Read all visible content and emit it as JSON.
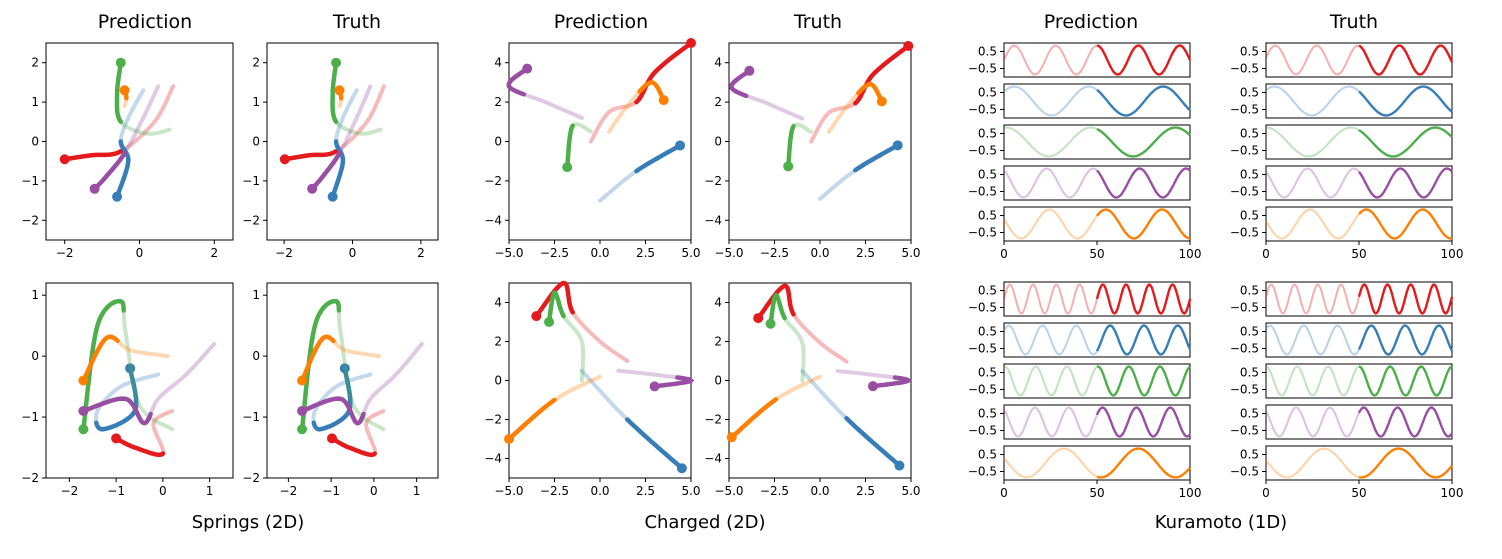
{
  "figure": {
    "groups": [
      {
        "label": "Springs (2D)"
      },
      {
        "label": "Charged (2D)"
      },
      {
        "label": "Kuramoto (1D)"
      }
    ],
    "column_titles": [
      "Prediction",
      "Truth",
      "Prediction",
      "Truth",
      "Prediction",
      "Truth"
    ]
  },
  "colors": {
    "red": "#e41a1c",
    "blue": "#377eb8",
    "green": "#4daf4a",
    "purple": "#984ea3",
    "orange": "#ff7f00"
  },
  "chart_data": [
    {
      "type": "line",
      "group": "Springs (2D)",
      "panels": [
        "Prediction",
        "Truth"
      ],
      "rows": 2,
      "xlim_rows": [
        [
          -2.5,
          2.5
        ],
        [
          -2.5,
          1.5
        ]
      ],
      "ylim_rows": [
        [
          -2.5,
          2.5
        ],
        [
          -2.0,
          1.2
        ]
      ],
      "xticks_rows": [
        [
          "−2",
          "0",
          "2"
        ],
        [
          "−2",
          "−1",
          "0",
          "1"
        ]
      ],
      "yticks_rows": [
        [
          "2",
          "1",
          "0",
          "−1",
          "−2"
        ],
        [
          "1",
          "0",
          "−1",
          "−2"
        ]
      ],
      "trajectories": [
        {
          "row": 0,
          "color": "red",
          "points": [
            [
              0.9,
              1.4
            ],
            [
              0.4,
              0.5
            ],
            [
              -0.5,
              -0.25
            ],
            [
              -1.3,
              -0.35
            ],
            [
              -2.0,
              -0.45
            ]
          ]
        },
        {
          "row": 0,
          "color": "blue",
          "points": [
            [
              0.1,
              1.3
            ],
            [
              -0.3,
              0.6
            ],
            [
              -0.5,
              0.0
            ],
            [
              -0.3,
              -0.5
            ],
            [
              -0.6,
              -1.4
            ]
          ]
        },
        {
          "row": 0,
          "color": "green",
          "points": [
            [
              0.8,
              0.3
            ],
            [
              0.2,
              0.2
            ],
            [
              -0.5,
              0.5
            ],
            [
              -0.6,
              1.2
            ],
            [
              -0.5,
              2.0
            ]
          ]
        },
        {
          "row": 0,
          "color": "purple",
          "points": [
            [
              0.5,
              1.4
            ],
            [
              0.1,
              0.6
            ],
            [
              -0.4,
              -0.3
            ],
            [
              -0.9,
              -0.9
            ],
            [
              -1.2,
              -1.2
            ]
          ]
        },
        {
          "row": 0,
          "color": "orange",
          "points": [
            [
              -0.4,
              0.9
            ],
            [
              -0.35,
              1.1
            ],
            [
              -0.4,
              1.3
            ]
          ]
        },
        {
          "row": 1,
          "color": "red",
          "points": [
            [
              0.2,
              -0.9
            ],
            [
              -0.2,
              -1.1
            ],
            [
              0.0,
              -1.6
            ],
            [
              -0.6,
              -1.5
            ],
            [
              -1.0,
              -1.35
            ]
          ]
        },
        {
          "row": 1,
          "color": "blue",
          "points": [
            [
              -0.1,
              -0.3
            ],
            [
              -0.9,
              -0.5
            ],
            [
              -1.4,
              -0.9
            ],
            [
              -1.3,
              -1.2
            ],
            [
              -0.6,
              -0.9
            ],
            [
              -0.7,
              -0.2
            ]
          ]
        },
        {
          "row": 1,
          "color": "green",
          "points": [
            [
              0.2,
              -1.2
            ],
            [
              -0.5,
              -0.8
            ],
            [
              -0.8,
              0.4
            ],
            [
              -0.9,
              0.9
            ],
            [
              -1.4,
              0.5
            ],
            [
              -1.7,
              -1.2
            ]
          ]
        },
        {
          "row": 1,
          "color": "purple",
          "points": [
            [
              1.1,
              0.2
            ],
            [
              0.5,
              -0.3
            ],
            [
              -0.1,
              -0.7
            ],
            [
              -0.4,
              -1.1
            ],
            [
              -0.8,
              -0.7
            ],
            [
              -1.7,
              -0.9
            ]
          ]
        },
        {
          "row": 1,
          "color": "orange",
          "points": [
            [
              0.1,
              0.0
            ],
            [
              -0.7,
              0.1
            ],
            [
              -1.2,
              0.3
            ],
            [
              -1.7,
              -0.4
            ]
          ]
        }
      ]
    },
    {
      "type": "line",
      "group": "Charged (2D)",
      "panels": [
        "Prediction",
        "Truth"
      ],
      "rows": 2,
      "xlim": [
        -5.0,
        5.0
      ],
      "ylim": [
        -5.0,
        5.0
      ],
      "xticks": [
        "−5.0",
        "−2.5",
        "0.0",
        "2.5",
        "5.0"
      ],
      "yticks": [
        "4",
        "2",
        "0",
        "−2",
        "−4"
      ],
      "trajectories": [
        {
          "row": 0,
          "color": "red",
          "points": [
            [
              -0.5,
              0.0
            ],
            [
              0.5,
              1.5
            ],
            [
              2.0,
              2.0
            ],
            [
              3.0,
              3.5
            ],
            [
              5.0,
              5.0
            ]
          ]
        },
        {
          "row": 0,
          "color": "blue",
          "points": [
            [
              0.0,
              -3.0
            ],
            [
              2.0,
              -1.5
            ],
            [
              4.4,
              -0.2
            ]
          ]
        },
        {
          "row": 0,
          "color": "green",
          "points": [
            [
              -0.5,
              0.5
            ],
            [
              -1.5,
              0.8
            ],
            [
              -1.8,
              -1.3
            ]
          ]
        },
        {
          "row": 0,
          "color": "purple",
          "points": [
            [
              -1.0,
              1.2
            ],
            [
              -3.0,
              2.0
            ],
            [
              -5.0,
              2.8
            ],
            [
              -4.0,
              3.7
            ]
          ]
        },
        {
          "row": 0,
          "color": "orange",
          "points": [
            [
              0.5,
              0.5
            ],
            [
              1.5,
              1.8
            ],
            [
              2.8,
              3.0
            ],
            [
              3.5,
              2.1
            ]
          ]
        },
        {
          "row": 1,
          "color": "red",
          "points": [
            [
              1.5,
              1.0
            ],
            [
              0.0,
              2.0
            ],
            [
              -1.5,
              3.5
            ],
            [
              -2.0,
              5.0
            ],
            [
              -3.5,
              3.3
            ]
          ]
        },
        {
          "row": 1,
          "color": "blue",
          "points": [
            [
              -1.0,
              0.5
            ],
            [
              1.5,
              -2.0
            ],
            [
              4.5,
              -4.5
            ]
          ]
        },
        {
          "row": 1,
          "color": "green",
          "points": [
            [
              -1.0,
              0.0
            ],
            [
              -1.0,
              2.0
            ],
            [
              -2.0,
              3.3
            ],
            [
              -2.5,
              4.5
            ],
            [
              -2.8,
              3.0
            ]
          ]
        },
        {
          "row": 1,
          "color": "purple",
          "points": [
            [
              1.0,
              0.5
            ],
            [
              3.0,
              0.3
            ],
            [
              5.0,
              0.0
            ],
            [
              3.0,
              -0.3
            ]
          ]
        },
        {
          "row": 1,
          "color": "orange",
          "points": [
            [
              0.0,
              0.2
            ],
            [
              -2.5,
              -1.0
            ],
            [
              -5.0,
              -3.0
            ]
          ]
        }
      ]
    },
    {
      "type": "line",
      "group": "Kuramoto (1D)",
      "panels": [
        "Prediction",
        "Truth"
      ],
      "rows": 2,
      "subplots_per_panel": 5,
      "xlim": [
        0,
        100
      ],
      "ylim": [
        -1.0,
        1.0
      ],
      "xticks": [
        "0",
        "50",
        "100"
      ],
      "yticks": [
        "0.5",
        "−0.5"
      ],
      "split_at": 50,
      "series": [
        {
          "row": 0,
          "color": "red",
          "prediction_cycles": 4.5,
          "truth_cycles": 4.5
        },
        {
          "row": 0,
          "color": "blue",
          "prediction_cycles": 2.5,
          "truth_cycles": 2.5
        },
        {
          "row": 0,
          "color": "green",
          "prediction_cycles": 2.2,
          "truth_cycles": 2.2
        },
        {
          "row": 0,
          "color": "purple",
          "prediction_cycles": 4.0,
          "truth_cycles": 4.0
        },
        {
          "row": 0,
          "color": "orange",
          "prediction_cycles": 3.3,
          "truth_cycles": 3.3
        },
        {
          "row": 1,
          "color": "red",
          "prediction_cycles": 8.0,
          "truth_cycles": 8.0
        },
        {
          "row": 1,
          "color": "blue",
          "prediction_cycles": 5.5,
          "truth_cycles": 5.5
        },
        {
          "row": 1,
          "color": "green",
          "prediction_cycles": 6.0,
          "truth_cycles": 6.0
        },
        {
          "row": 1,
          "color": "purple",
          "prediction_cycles": 5.5,
          "truth_cycles": 5.5
        },
        {
          "row": 1,
          "color": "orange",
          "prediction_cycles": 2.5,
          "truth_cycles": 2.5
        }
      ]
    }
  ]
}
